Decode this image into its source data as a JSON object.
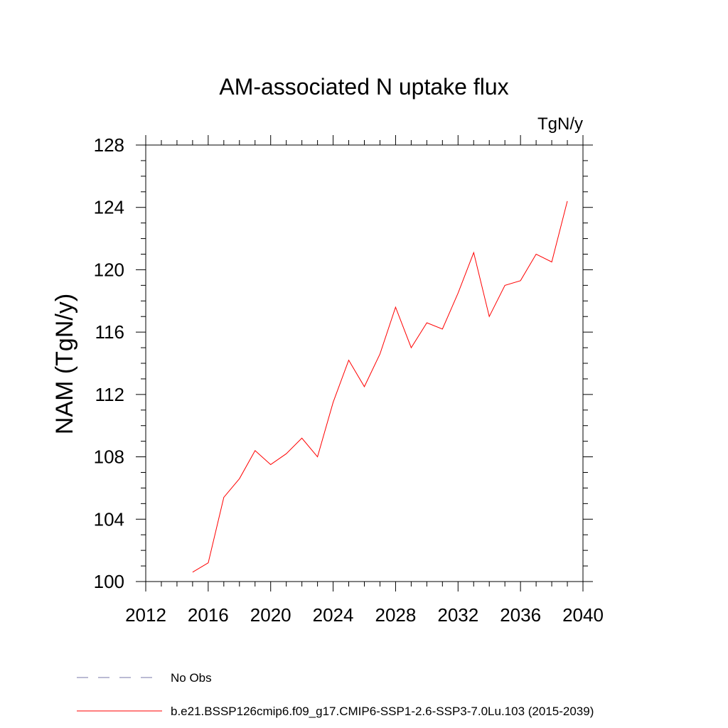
{
  "chart_data": {
    "type": "line",
    "title": "AM-associated N uptake flux",
    "units_label": "TgN/y",
    "ylabel": "NAM  (TgN/y)",
    "xlabel": "",
    "xlim": [
      2012,
      2040
    ],
    "ylim": [
      100,
      128
    ],
    "x_ticks": [
      "2012",
      "2016",
      "2020",
      "2024",
      "2028",
      "2032",
      "2036",
      "2040"
    ],
    "y_ticks": [
      "100",
      "104",
      "108",
      "112",
      "116",
      "120",
      "124",
      "128"
    ],
    "series": [
      {
        "name": "b.e21.BSSP126cmip6.f09_g17.CMIP6-SSP1-2.6-SSP3-7.0Lu.103 (2015-2039)",
        "color": "#ff0000",
        "x": [
          2015,
          2016,
          2017,
          2018,
          2019,
          2020,
          2021,
          2022,
          2023,
          2024,
          2025,
          2026,
          2027,
          2028,
          2029,
          2030,
          2031,
          2032,
          2033,
          2034,
          2035,
          2036,
          2037,
          2038,
          2039
        ],
        "y": [
          100.6,
          101.2,
          105.4,
          106.6,
          108.4,
          107.5,
          108.2,
          109.2,
          108.0,
          111.5,
          114.2,
          112.5,
          114.6,
          117.6,
          115.0,
          116.6,
          116.2,
          118.5,
          121.1,
          117.0,
          119.0,
          119.3,
          121.0,
          120.5,
          124.4
        ]
      }
    ],
    "legend": {
      "placement": "bottom-left",
      "entries": [
        {
          "label": "No Obs",
          "style": "dashed",
          "color": "#7777aa"
        },
        {
          "label": "b.e21.BSSP126cmip6.f09_g17.CMIP6-SSP1-2.6-SSP3-7.0Lu.103 (2015-2039)",
          "style": "solid",
          "color": "#ff0000"
        }
      ]
    },
    "grid": false
  }
}
